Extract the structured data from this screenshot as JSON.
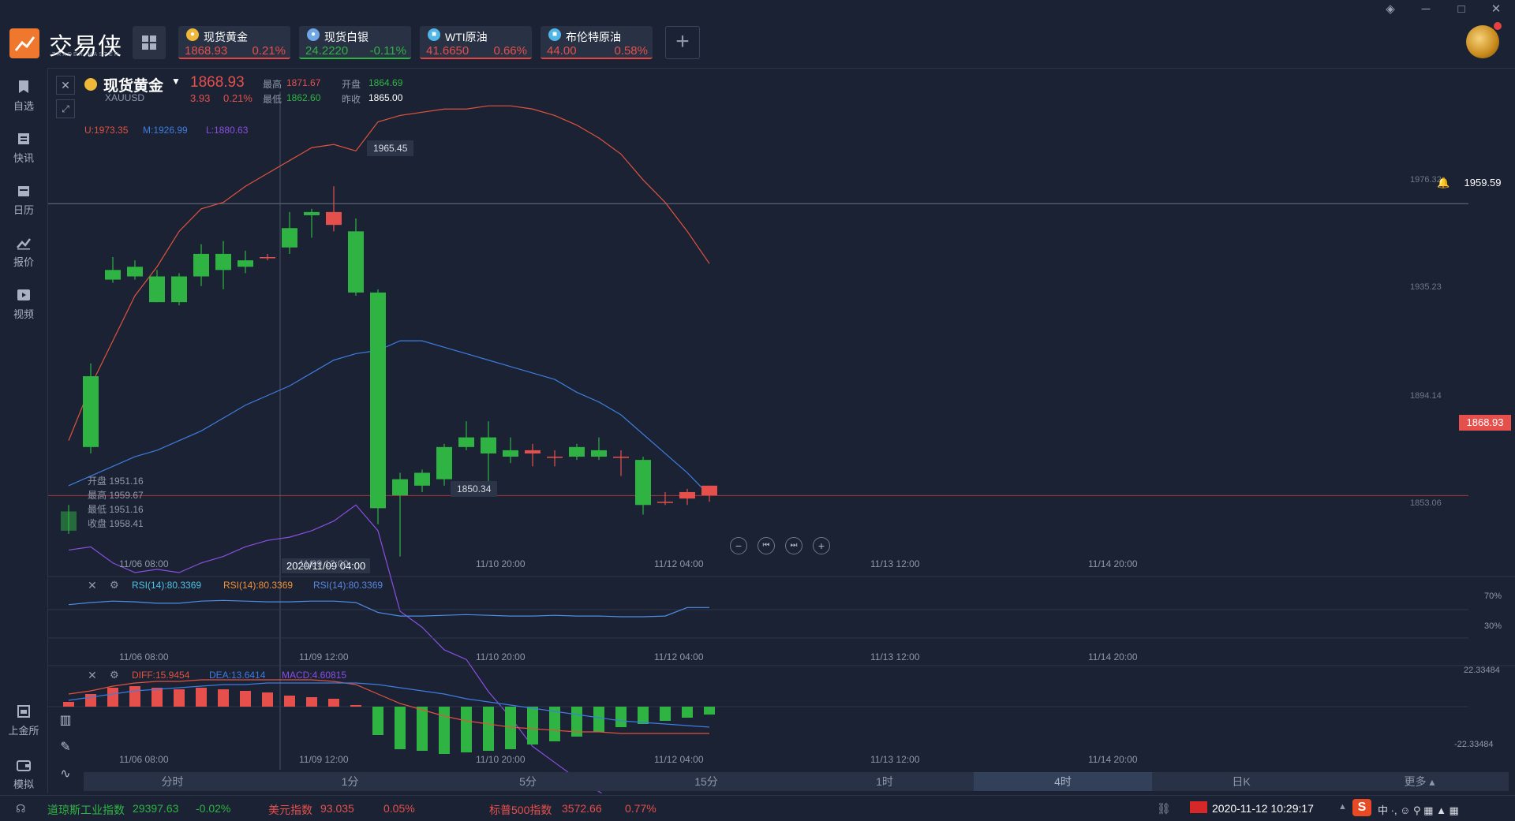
{
  "app": {
    "name": "交易侠",
    "subtitle": "TRADER MASTER"
  },
  "tickers": [
    {
      "name": "现货黄金",
      "price": "1868.93",
      "change": "0.21%",
      "dir": "up",
      "icon": "gold-coin-icon",
      "color": "#f0b838"
    },
    {
      "name": "现货白银",
      "price": "24.2220",
      "change": "-0.11%",
      "dir": "down",
      "icon": "silver-coin-icon",
      "color": "#6fa6e6"
    },
    {
      "name": "WTI原油",
      "price": "41.6650",
      "change": "0.66%",
      "dir": "up",
      "icon": "oil-icon",
      "color": "#4fb6e6"
    },
    {
      "name": "布伦特原油",
      "price": "44.00",
      "change": "0.58%",
      "dir": "up",
      "icon": "oil-icon",
      "color": "#4fb6e6"
    }
  ],
  "sidebar": [
    {
      "label": "自选",
      "icon": "bookmark-icon"
    },
    {
      "label": "快讯",
      "icon": "news-icon"
    },
    {
      "label": "日历",
      "icon": "calendar-icon"
    },
    {
      "label": "报价",
      "icon": "chart-line-icon"
    },
    {
      "label": "视频",
      "icon": "video-icon"
    },
    {
      "label": "上金所",
      "icon": "exchange-icon"
    },
    {
      "label": "模拟",
      "icon": "wallet-icon"
    }
  ],
  "symbol": {
    "name": "现货黄金",
    "code": "XAUUSD",
    "price": "1868.93",
    "change": "3.93",
    "change_pct": "0.21%",
    "high_label": "最高",
    "high": "1871.67",
    "open_label": "开盘",
    "open": "1864.69",
    "low_label": "最低",
    "low": "1862.60",
    "prev_label": "昨收",
    "prev": "1865.00"
  },
  "boll": {
    "u": "U:1973.35",
    "m": "M:1926.99",
    "l": "L:1880.63"
  },
  "ohlc_box": [
    "开盘 1951.16",
    "最高 1959.67",
    "最低 1951.16",
    "收盘 1958.41"
  ],
  "price_axis": [
    "1976.32",
    "1935.23",
    "1894.14",
    "1853.06"
  ],
  "hline_price": "1959.59",
  "last_price": "1868.93",
  "high_mark": "1965.45",
  "low_mark": "1850.34",
  "crosshair_time": "2020/11/09 04:00",
  "time_axis": [
    "11/06 08:00",
    "11/09 12:00",
    "11/10 20:00",
    "11/12 04:00",
    "11/13 12:00",
    "11/14 20:00"
  ],
  "rsi": {
    "a": "RSI(14):80.3369",
    "b": "RSI(14):80.3369",
    "c": "RSI(14):80.3369",
    "levels": [
      "70%",
      "30%"
    ]
  },
  "macd": {
    "diff": "DIFF:15.9454",
    "dea": "DEA:13.6414",
    "macd": "MACD:4.60815",
    "top": "22.33484",
    "bottom": "-22.33484"
  },
  "timeframes": [
    "分时",
    "1分",
    "5分",
    "15分",
    "1时",
    "4时",
    "日K",
    "更多"
  ],
  "active_timeframe": "4时",
  "bottom": {
    "dow_label": "道琼斯工业指数",
    "dow": "29397.63",
    "dow_chg": "-0.02%",
    "usd_label": "美元指数",
    "usd": "93.035",
    "usd_chg": "0.05%",
    "sp_label": "标普500指数",
    "sp": "3572.66",
    "sp_chg": "0.77%",
    "datetime": "2020-11-12 10:29:17"
  },
  "colors": {
    "up": "#e5504c",
    "down": "#2fb443",
    "bg": "#1b2233",
    "upper": "#e0533f",
    "mid": "#3d7de0",
    "lower": "#8a4fe0",
    "rsi": "#4d8ee6"
  },
  "chart_data": {
    "type": "candlestick",
    "ylim": [
      1845,
      1992
    ],
    "candles": [
      {
        "o": 1864,
        "h": 1866,
        "l": 1857,
        "c": 1858
      },
      {
        "o": 1906,
        "h": 1910,
        "l": 1882,
        "c": 1884
      },
      {
        "o": 1939,
        "h": 1943,
        "l": 1935,
        "c": 1936
      },
      {
        "o": 1940,
        "h": 1942,
        "l": 1936,
        "c": 1937
      },
      {
        "o": 1937,
        "h": 1939,
        "l": 1929,
        "c": 1929
      },
      {
        "o": 1937,
        "h": 1938,
        "l": 1928,
        "c": 1929
      },
      {
        "o": 1944,
        "h": 1947,
        "l": 1934,
        "c": 1937
      },
      {
        "o": 1944,
        "h": 1948,
        "l": 1933,
        "c": 1939
      },
      {
        "o": 1942,
        "h": 1945,
        "l": 1938,
        "c": 1940
      },
      {
        "o": 1943,
        "h": 1944,
        "l": 1942,
        "c": 1943
      },
      {
        "o": 1952,
        "h": 1957,
        "l": 1944,
        "c": 1946
      },
      {
        "o": 1957,
        "h": 1958,
        "l": 1949,
        "c": 1956
      },
      {
        "o": 1953,
        "h": 1965,
        "l": 1951,
        "c": 1957
      },
      {
        "o": 1951,
        "h": 1955,
        "l": 1931,
        "c": 1932
      },
      {
        "o": 1932,
        "h": 1933,
        "l": 1860,
        "c": 1865
      },
      {
        "o": 1874,
        "h": 1876,
        "l": 1850,
        "c": 1869
      },
      {
        "o": 1876,
        "h": 1877,
        "l": 1870,
        "c": 1872
      },
      {
        "o": 1884,
        "h": 1885,
        "l": 1872,
        "c": 1874
      },
      {
        "o": 1887,
        "h": 1892,
        "l": 1883,
        "c": 1884
      },
      {
        "o": 1887,
        "h": 1892,
        "l": 1873,
        "c": 1882
      },
      {
        "o": 1883,
        "h": 1887,
        "l": 1879,
        "c": 1881
      },
      {
        "o": 1882,
        "h": 1885,
        "l": 1878,
        "c": 1883
      },
      {
        "o": 1881,
        "h": 1883,
        "l": 1878,
        "c": 1881
      },
      {
        "o": 1884,
        "h": 1885,
        "l": 1880,
        "c": 1881
      },
      {
        "o": 1883,
        "h": 1887,
        "l": 1880,
        "c": 1881
      },
      {
        "o": 1881,
        "h": 1883,
        "l": 1875,
        "c": 1881
      },
      {
        "o": 1880,
        "h": 1881,
        "l": 1863,
        "c": 1866
      },
      {
        "o": 1867,
        "h": 1870,
        "l": 1866,
        "c": 1867
      },
      {
        "o": 1868,
        "h": 1871,
        "l": 1866,
        "c": 1870
      },
      {
        "o": 1869,
        "h": 1872,
        "l": 1867,
        "c": 1872
      }
    ],
    "upper": [
      1886,
      1903,
      1917,
      1931,
      1940,
      1951,
      1958,
      1960,
      1965,
      1969,
      1973,
      1977,
      1978,
      1976,
      1985,
      1987,
      1988,
      1989,
      1989,
      1990,
      1990,
      1989,
      1987,
      1984,
      1980,
      1975,
      1967,
      1960,
      1951,
      1941
    ],
    "middle": [
      1872,
      1875,
      1878,
      1881,
      1883,
      1886,
      1889,
      1893,
      1897,
      1900,
      1903,
      1907,
      1911,
      1913,
      1914,
      1917,
      1917,
      1915,
      1913,
      1911,
      1909,
      1907,
      1905,
      1901,
      1898,
      1894,
      1888,
      1882,
      1876,
      1869
    ],
    "lower": [
      1852,
      1853,
      1848,
      1845,
      1846,
      1845,
      1848,
      1850,
      1853,
      1855,
      1856,
      1858,
      1861,
      1866,
      1858,
      1833,
      1828,
      1821,
      1818,
      1808,
      1800,
      1791,
      1786,
      1781,
      1777,
      1772,
      1765,
      1759,
      1756,
      1755
    ],
    "rsi": [
      77,
      80,
      82,
      81,
      79,
      79,
      82,
      83,
      82,
      81,
      81,
      82,
      82,
      80,
      66,
      61,
      61,
      62,
      63,
      62,
      61,
      61,
      62,
      61,
      61,
      60,
      60,
      61,
      73,
      73
    ],
    "macd_hist": [
      3,
      8,
      12,
      13,
      12,
      11,
      12,
      11,
      10,
      9,
      7,
      6,
      5,
      1,
      -18,
      -27,
      -28,
      -30,
      -29,
      -28,
      -27,
      -24,
      -22,
      -19,
      -16,
      -13,
      -11,
      -9,
      -7,
      -5
    ],
    "diff": [
      8,
      10,
      13,
      15,
      16,
      16,
      17,
      17,
      17,
      17,
      17,
      17,
      16,
      14,
      8,
      2,
      -2,
      -6,
      -9,
      -11,
      -13,
      -14,
      -15,
      -16,
      -16,
      -17,
      -17,
      -17,
      -17,
      -17
    ],
    "dea": [
      4,
      6,
      8,
      10,
      11,
      12,
      13,
      14,
      14,
      15,
      15,
      15,
      15,
      15,
      14,
      12,
      10,
      8,
      5,
      3,
      1,
      -1,
      -3,
      -5,
      -7,
      -9,
      -10,
      -11,
      -12,
      -13
    ]
  }
}
